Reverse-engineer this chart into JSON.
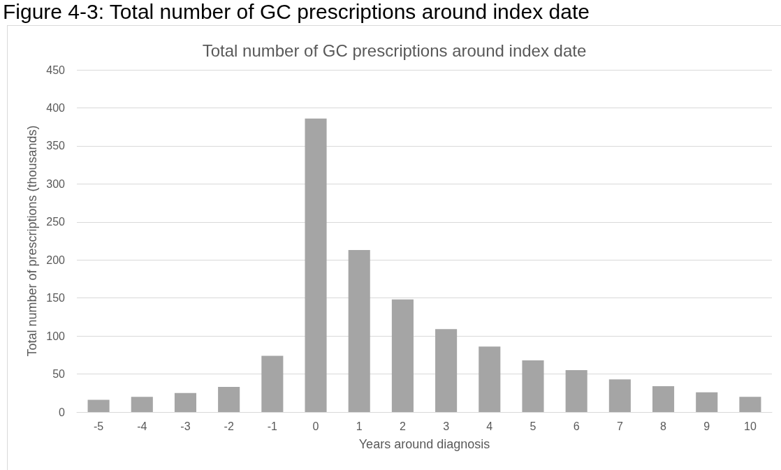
{
  "chart_data": {
    "type": "bar",
    "title": "Total number of GC prescriptions around index date",
    "annotations": [
      "Figure 4-3: Total number of GC prescriptions around index date"
    ],
    "xlabel": "Years around diagnosis",
    "ylabel": "Total number of prescriptions (thousands)",
    "categories": [
      "-5",
      "-4",
      "-3",
      "-2",
      "-1",
      "0",
      "1",
      "2",
      "3",
      "4",
      "5",
      "6",
      "7",
      "8",
      "9",
      "10"
    ],
    "values": [
      16,
      20,
      25,
      33,
      74,
      386,
      213,
      148,
      109,
      86,
      68,
      55,
      43,
      34,
      26,
      20
    ],
    "color": "#a5a5a5",
    "ylim": [
      0,
      450
    ],
    "yticks": [
      0,
      50,
      100,
      150,
      200,
      250,
      300,
      350,
      400,
      450
    ],
    "grid": "y"
  }
}
